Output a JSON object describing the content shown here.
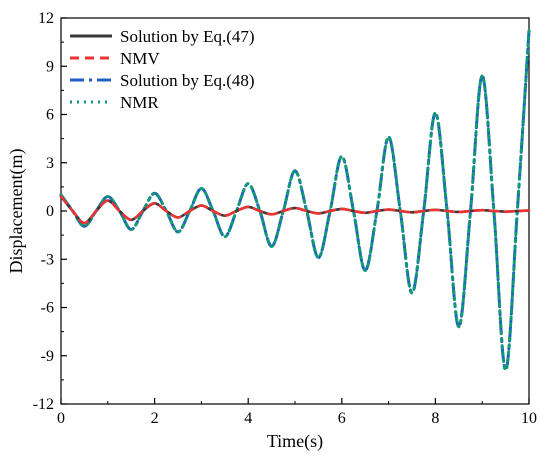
{
  "chart_data": {
    "type": "line",
    "xlabel": "Time(s)",
    "ylabel": "Displacement(m)",
    "xlim": [
      0,
      10
    ],
    "ylim": [
      -12,
      12
    ],
    "x_ticks": [
      0,
      2,
      4,
      6,
      8,
      10
    ],
    "y_ticks": [
      -12,
      -9,
      -6,
      -3,
      0,
      3,
      6,
      9,
      12
    ],
    "grid": false,
    "legend_position": "top-left",
    "series": [
      {
        "name": "Solution by Eq.(47)",
        "color": "#3a3a3a",
        "dash": "solid",
        "x": [
          0,
          0.25,
          0.5,
          0.75,
          1.0,
          1.25,
          1.5,
          1.75,
          2.0,
          2.25,
          2.5,
          2.75,
          3.0,
          3.25,
          3.5,
          3.75,
          4.0,
          4.25,
          4.5,
          4.75,
          5.0,
          5.25,
          5.5,
          5.75,
          6.0,
          6.25,
          6.5,
          6.75,
          7.0,
          7.25,
          7.5,
          7.75,
          8.0,
          8.25,
          8.5,
          8.75,
          9.0,
          9.25,
          9.5,
          9.75,
          10.0
        ],
        "y": [
          0.9,
          0.0,
          -0.75,
          0.0,
          0.65,
          0.0,
          -0.55,
          0.0,
          0.48,
          0.0,
          -0.4,
          0.0,
          0.34,
          0.0,
          -0.29,
          0.0,
          0.25,
          0.0,
          -0.21,
          0.0,
          0.18,
          0.0,
          -0.15,
          0.0,
          0.13,
          0.0,
          -0.11,
          0.0,
          0.09,
          0.0,
          -0.08,
          0.0,
          0.07,
          0.0,
          -0.06,
          0.0,
          0.05,
          0.0,
          -0.04,
          0.0,
          0.03
        ]
      },
      {
        "name": "NMV",
        "color": "#ee3333",
        "dash": "9,6",
        "x": [
          0,
          0.25,
          0.5,
          0.75,
          1.0,
          1.25,
          1.5,
          1.75,
          2.0,
          2.25,
          2.5,
          2.75,
          3.0,
          3.25,
          3.5,
          3.75,
          4.0,
          4.25,
          4.5,
          4.75,
          5.0,
          5.25,
          5.5,
          5.75,
          6.0,
          6.25,
          6.5,
          6.75,
          7.0,
          7.25,
          7.5,
          7.75,
          8.0,
          8.25,
          8.5,
          8.75,
          9.0,
          9.25,
          9.5,
          9.75,
          10.0
        ],
        "y": [
          0.9,
          0.0,
          -0.75,
          0.0,
          0.65,
          0.0,
          -0.55,
          0.0,
          0.48,
          0.0,
          -0.4,
          0.0,
          0.34,
          0.0,
          -0.29,
          0.0,
          0.25,
          0.0,
          -0.21,
          0.0,
          0.18,
          0.0,
          -0.15,
          0.0,
          0.13,
          0.0,
          -0.11,
          0.0,
          0.09,
          0.0,
          -0.08,
          0.0,
          0.07,
          0.0,
          -0.06,
          0.0,
          0.05,
          0.0,
          -0.04,
          0.0,
          0.03
        ]
      },
      {
        "name": "Solution by Eq.(48)",
        "color": "#1f5fc8",
        "dash": "14,5,3,5",
        "x": [
          0,
          0.25,
          0.5,
          0.75,
          1.0,
          1.25,
          1.5,
          1.75,
          2.0,
          2.25,
          2.5,
          2.75,
          3.0,
          3.25,
          3.5,
          3.75,
          4.0,
          4.25,
          4.5,
          4.75,
          5.0,
          5.25,
          5.5,
          5.75,
          6.0,
          6.25,
          6.5,
          6.75,
          7.0,
          7.25,
          7.5,
          7.75,
          8.0,
          8.25,
          8.5,
          8.75,
          9.0,
          9.25,
          9.5,
          9.75,
          10.0
        ],
        "y": [
          1.0,
          0.0,
          -0.95,
          0.0,
          0.9,
          0.0,
          -1.15,
          0.0,
          1.1,
          0.0,
          -1.3,
          0.0,
          1.4,
          0.0,
          -1.6,
          0.0,
          1.7,
          0.0,
          -2.2,
          0.0,
          2.5,
          0.0,
          -2.9,
          0.0,
          3.4,
          0.0,
          -3.7,
          0.0,
          4.6,
          0.0,
          -5.1,
          0.0,
          6.1,
          0.0,
          -7.2,
          0.0,
          8.4,
          0.0,
          -9.9,
          0.0,
          11.2
        ]
      },
      {
        "name": "NMR",
        "color": "#119977",
        "dash": "2,5",
        "x": [
          0,
          0.25,
          0.5,
          0.75,
          1.0,
          1.25,
          1.5,
          1.75,
          2.0,
          2.25,
          2.5,
          2.75,
          3.0,
          3.25,
          3.5,
          3.75,
          4.0,
          4.25,
          4.5,
          4.75,
          5.0,
          5.25,
          5.5,
          5.75,
          6.0,
          6.25,
          6.5,
          6.75,
          7.0,
          7.25,
          7.5,
          7.75,
          8.0,
          8.25,
          8.5,
          8.75,
          9.0,
          9.25,
          9.5,
          9.75,
          10.0
        ],
        "y": [
          1.0,
          0.0,
          -0.95,
          0.0,
          0.9,
          0.0,
          -1.15,
          0.0,
          1.1,
          0.0,
          -1.3,
          0.0,
          1.4,
          0.0,
          -1.6,
          0.0,
          1.7,
          0.0,
          -2.2,
          0.0,
          2.5,
          0.0,
          -2.9,
          0.0,
          3.4,
          0.0,
          -3.7,
          0.0,
          4.6,
          0.0,
          -5.1,
          0.0,
          6.1,
          0.0,
          -7.2,
          0.0,
          8.4,
          0.0,
          -9.9,
          0.0,
          11.2
        ]
      }
    ]
  }
}
